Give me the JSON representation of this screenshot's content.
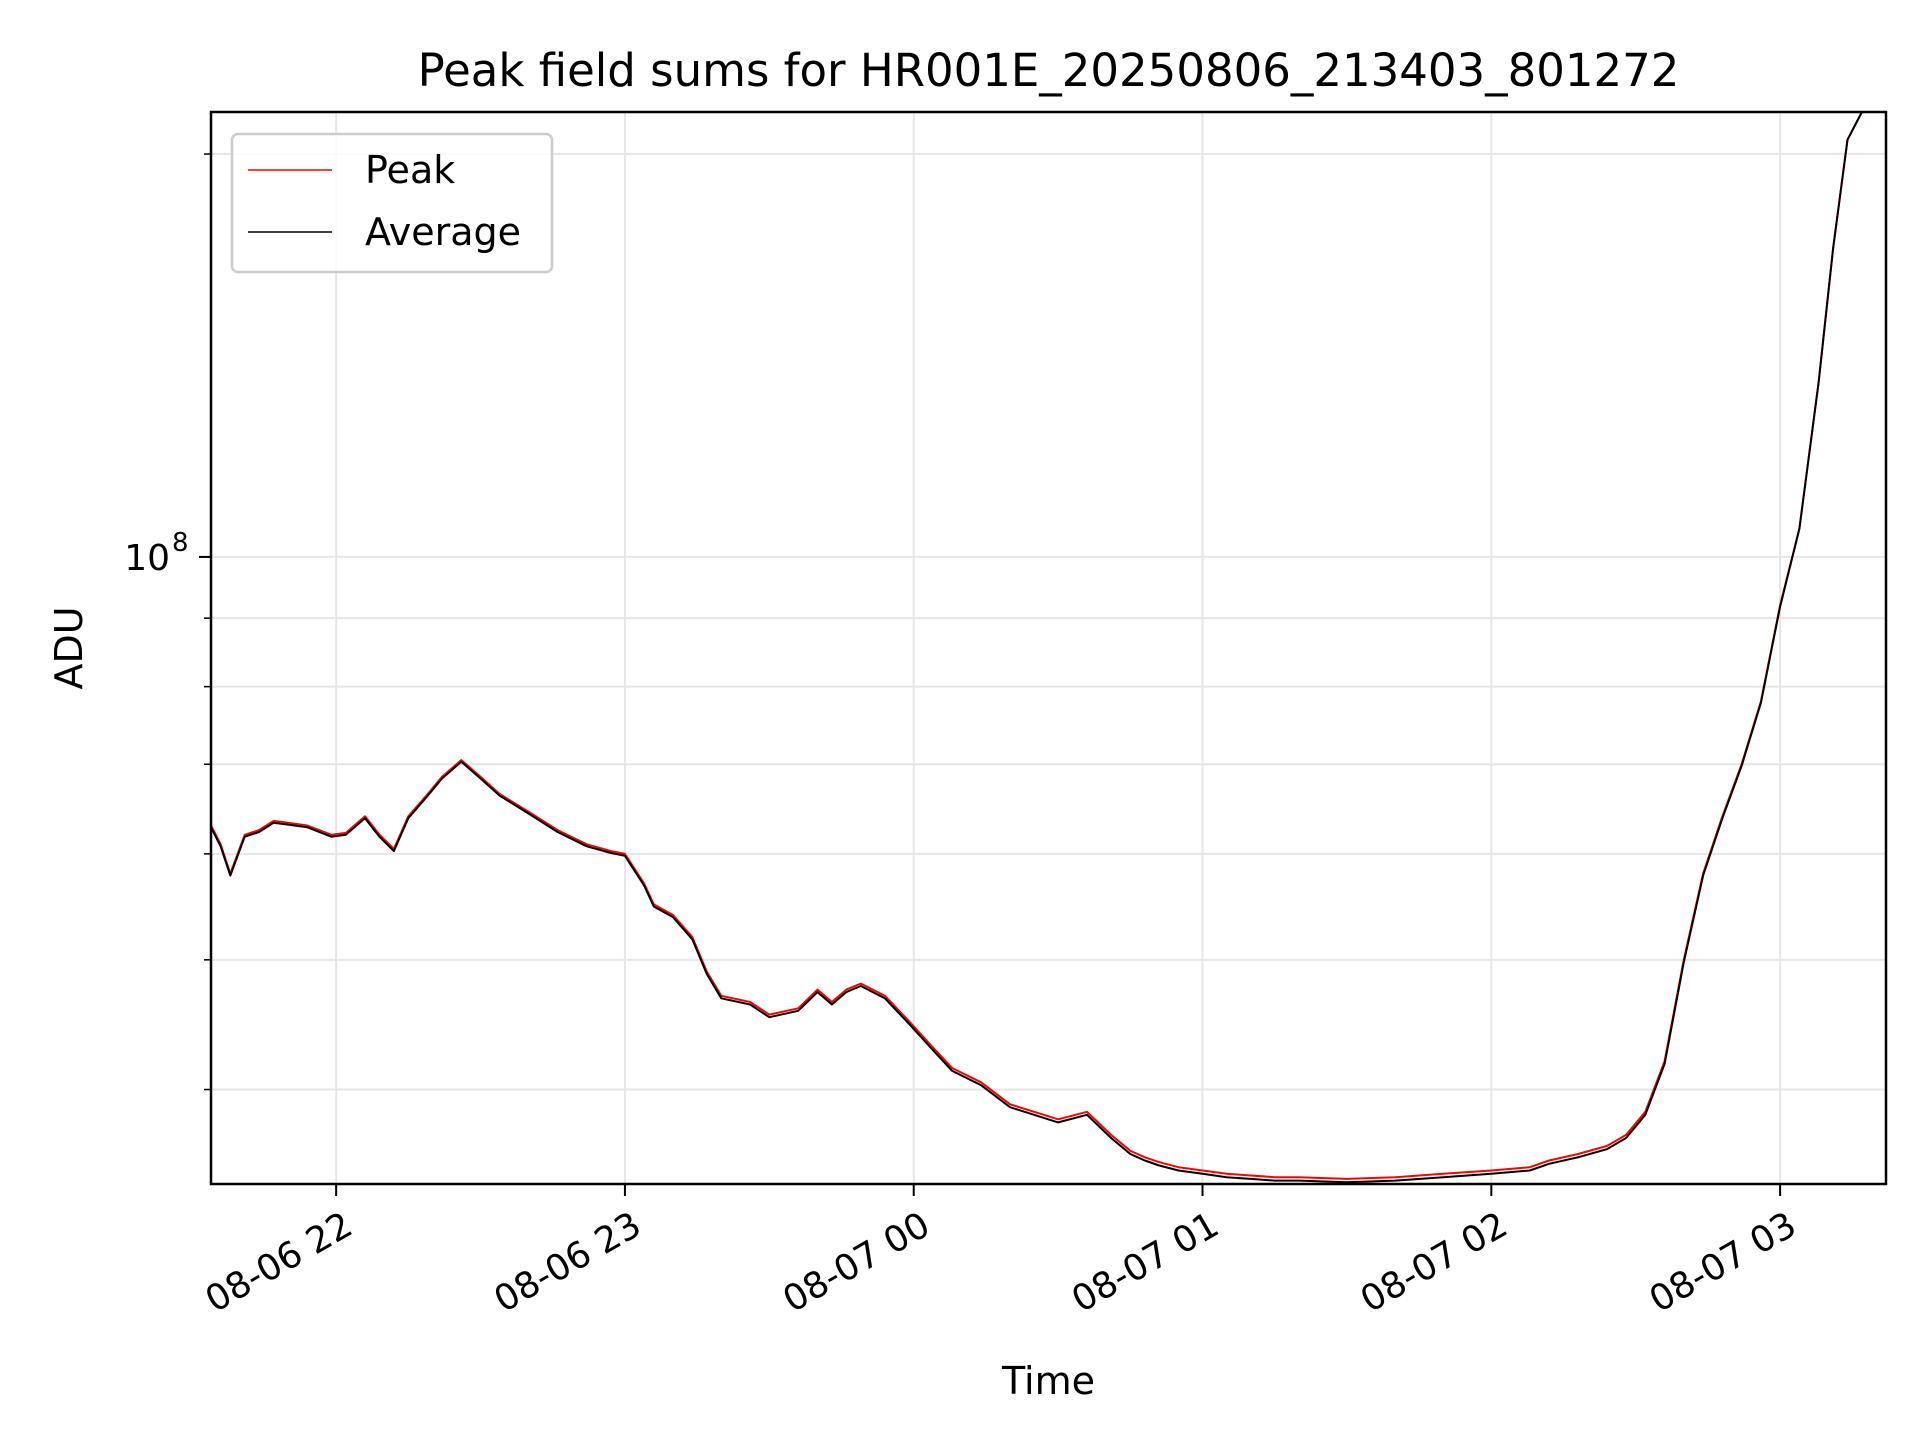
{
  "chart_data": {
    "type": "line",
    "title": "Peak field sums for HR001E_20250806_213403_801272",
    "xlabel": "Time",
    "ylabel": "ADU",
    "y_scale": "log",
    "xlim": [
      "2025-08-06 21:34",
      "2025-08-07 03:22"
    ],
    "ylim": [
      34000000,
      215000000
    ],
    "x_ticks": [
      "08-06 22",
      "08-06 23",
      "08-07 00",
      "08-07 01",
      "08-07 02",
      "08-07 03"
    ],
    "x_tick_times": [
      "2025-08-06 22:00",
      "2025-08-06 23:00",
      "2025-08-07 00:00",
      "2025-08-07 01:00",
      "2025-08-07 02:00",
      "2025-08-07 03:00"
    ],
    "y_major_ticks": [
      {
        "value": 100000000,
        "base": "10",
        "exponent": "8"
      }
    ],
    "y_minor_ticks": [
      40000000,
      50000000,
      60000000,
      70000000,
      80000000,
      90000000,
      200000000
    ],
    "grid": true,
    "legend_position": "top-left",
    "series": [
      {
        "name": "Peak",
        "color": "#ff0000",
        "x": [
          "2025-08-06 21:34",
          "2025-08-06 21:36",
          "2025-08-06 21:38",
          "2025-08-06 21:41",
          "2025-08-06 21:44",
          "2025-08-06 21:47",
          "2025-08-06 21:50",
          "2025-08-06 21:54",
          "2025-08-06 21:59",
          "2025-08-06 22:02",
          "2025-08-06 22:06",
          "2025-08-06 22:09",
          "2025-08-06 22:12",
          "2025-08-06 22:15",
          "2025-08-06 22:19",
          "2025-08-06 22:22",
          "2025-08-06 22:26",
          "2025-08-06 22:30",
          "2025-08-06 22:34",
          "2025-08-06 22:40",
          "2025-08-06 22:46",
          "2025-08-06 22:52",
          "2025-08-06 22:57",
          "2025-08-06 23:00",
          "2025-08-06 23:04",
          "2025-08-06 23:06",
          "2025-08-06 23:10",
          "2025-08-06 23:14",
          "2025-08-06 23:17",
          "2025-08-06 23:20",
          "2025-08-06 23:26",
          "2025-08-06 23:30",
          "2025-08-06 23:36",
          "2025-08-06 23:40",
          "2025-08-06 23:43",
          "2025-08-06 23:46",
          "2025-08-06 23:49",
          "2025-08-06 23:54",
          "2025-08-06 23:59",
          "2025-08-07 00:04",
          "2025-08-07 00:08",
          "2025-08-07 00:14",
          "2025-08-07 00:20",
          "2025-08-07 00:25",
          "2025-08-07 00:30",
          "2025-08-07 00:36",
          "2025-08-07 00:41",
          "2025-08-07 00:45",
          "2025-08-07 00:48",
          "2025-08-07 00:51",
          "2025-08-07 00:55",
          "2025-08-07 01:00",
          "2025-08-07 01:05",
          "2025-08-07 01:10",
          "2025-08-07 01:15",
          "2025-08-07 01:20",
          "2025-08-07 01:30",
          "2025-08-07 01:40",
          "2025-08-07 01:50",
          "2025-08-07 02:00",
          "2025-08-07 02:08",
          "2025-08-07 02:12",
          "2025-08-07 02:18",
          "2025-08-07 02:24",
          "2025-08-07 02:28",
          "2025-08-07 02:32",
          "2025-08-07 02:36",
          "2025-08-07 02:40",
          "2025-08-07 02:44",
          "2025-08-07 02:48",
          "2025-08-07 02:52",
          "2025-08-07 02:56",
          "2025-08-07 03:00",
          "2025-08-07 03:04",
          "2025-08-07 03:08",
          "2025-08-07 03:11",
          "2025-08-07 03:14",
          "2025-08-07 03:17"
        ],
        "y": [
          63000000,
          61000000,
          58000000,
          62000000,
          62500000,
          63500000,
          63300000,
          63000000,
          62000000,
          62200000,
          64000000,
          62000000,
          60500000,
          64000000,
          66500000,
          68500000,
          70500000,
          68500000,
          66500000,
          64500000,
          62500000,
          61000000,
          60300000,
          60000000,
          57000000,
          55000000,
          54000000,
          52000000,
          49000000,
          47000000,
          46500000,
          45500000,
          46000000,
          47500000,
          46500000,
          47500000,
          48000000,
          47000000,
          45000000,
          43000000,
          41500000,
          40500000,
          39000000,
          38500000,
          38000000,
          38500000,
          37000000,
          36000000,
          35600000,
          35300000,
          35000000,
          34800000,
          34600000,
          34500000,
          34400000,
          34400000,
          34300000,
          34400000,
          34600000,
          34800000,
          35000000,
          35400000,
          35800000,
          36300000,
          37000000,
          38500000,
          42000000,
          50000000,
          58000000,
          64000000,
          70000000,
          78000000,
          92000000,
          105000000,
          135000000,
          170000000,
          205000000,
          215000000
        ]
      },
      {
        "name": "Average",
        "color": "#000000",
        "x": [
          "2025-08-06 21:34",
          "2025-08-06 21:36",
          "2025-08-06 21:38",
          "2025-08-06 21:41",
          "2025-08-06 21:44",
          "2025-08-06 21:47",
          "2025-08-06 21:50",
          "2025-08-06 21:54",
          "2025-08-06 21:59",
          "2025-08-06 22:02",
          "2025-08-06 22:06",
          "2025-08-06 22:09",
          "2025-08-06 22:12",
          "2025-08-06 22:15",
          "2025-08-06 22:19",
          "2025-08-06 22:22",
          "2025-08-06 22:26",
          "2025-08-06 22:30",
          "2025-08-06 22:34",
          "2025-08-06 22:40",
          "2025-08-06 22:46",
          "2025-08-06 22:52",
          "2025-08-06 22:57",
          "2025-08-06 23:00",
          "2025-08-06 23:04",
          "2025-08-06 23:06",
          "2025-08-06 23:10",
          "2025-08-06 23:14",
          "2025-08-06 23:17",
          "2025-08-06 23:20",
          "2025-08-06 23:26",
          "2025-08-06 23:30",
          "2025-08-06 23:36",
          "2025-08-06 23:40",
          "2025-08-06 23:43",
          "2025-08-06 23:46",
          "2025-08-06 23:49",
          "2025-08-06 23:54",
          "2025-08-06 23:59",
          "2025-08-07 00:04",
          "2025-08-07 00:08",
          "2025-08-07 00:14",
          "2025-08-07 00:20",
          "2025-08-07 00:25",
          "2025-08-07 00:30",
          "2025-08-07 00:36",
          "2025-08-07 00:41",
          "2025-08-07 00:45",
          "2025-08-07 00:48",
          "2025-08-07 00:51",
          "2025-08-07 00:55",
          "2025-08-07 01:00",
          "2025-08-07 01:05",
          "2025-08-07 01:10",
          "2025-08-07 01:15",
          "2025-08-07 01:20",
          "2025-08-07 01:30",
          "2025-08-07 01:40",
          "2025-08-07 01:50",
          "2025-08-07 02:00",
          "2025-08-07 02:08",
          "2025-08-07 02:12",
          "2025-08-07 02:18",
          "2025-08-07 02:24",
          "2025-08-07 02:28",
          "2025-08-07 02:32",
          "2025-08-07 02:36",
          "2025-08-07 02:40",
          "2025-08-07 02:44",
          "2025-08-07 02:48",
          "2025-08-07 02:52",
          "2025-08-07 02:56",
          "2025-08-07 03:00",
          "2025-08-07 03:04",
          "2025-08-07 03:08",
          "2025-08-07 03:11",
          "2025-08-07 03:14",
          "2025-08-07 03:17"
        ],
        "y": [
          62800000,
          60800000,
          57800000,
          61800000,
          62300000,
          63300000,
          63100000,
          62800000,
          61800000,
          62000000,
          63800000,
          61800000,
          60300000,
          63800000,
          66300000,
          68300000,
          70300000,
          68300000,
          66300000,
          64300000,
          62300000,
          60800000,
          60100000,
          59800000,
          56800000,
          54800000,
          53800000,
          51800000,
          48800000,
          46800000,
          46300000,
          45300000,
          45800000,
          47300000,
          46300000,
          47300000,
          47800000,
          46800000,
          44800000,
          42800000,
          41300000,
          40300000,
          38800000,
          38300000,
          37800000,
          38300000,
          36800000,
          35800000,
          35400000,
          35100000,
          34800000,
          34600000,
          34400000,
          34300000,
          34200000,
          34200000,
          34100000,
          34200000,
          34400000,
          34600000,
          34800000,
          35200000,
          35600000,
          36100000,
          36800000,
          38300000,
          41800000,
          49800000,
          57800000,
          63800000,
          69800000,
          77800000,
          91800000,
          105000000,
          135000000,
          170000000,
          205000000,
          215000000
        ]
      }
    ]
  }
}
